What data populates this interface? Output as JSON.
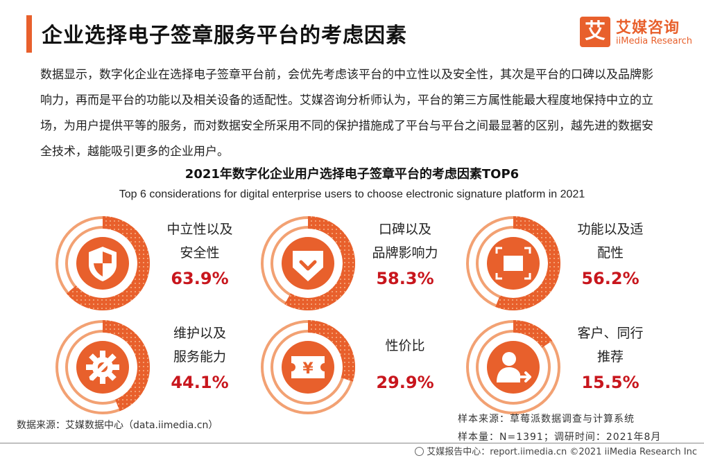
{
  "header": {
    "title": "企业选择电子签章服务平台的考虑因素",
    "logo_mark": "艾",
    "logo_cn": "艾媒咨询",
    "logo_en": "iiMedia Research"
  },
  "intro": "数据显示，数字化企业在选择电子签章平台前，会优先考虑该平台的中立性以及安全性，其次是平台的口碑以及品牌影响力，再而是平台的功能以及相关设备的适配性。艾媒咨询分析师认为，平台的第三方属性能最大程度地保持中立的立场，为用户提供平等的服务，而对数据安全所采用不同的保护措施成了平台与平台之间最显著的区别，越先进的数据安全技术，越能吸引更多的企业用户。",
  "chart_data": {
    "type": "pie",
    "title": "2021年数字化企业用户选择电子签章平台的考虑因素TOP6",
    "subtitle": "Top 6 considerations for digital enterprise users to choose electronic signature platform in 2021",
    "unit": "%",
    "items": [
      {
        "label_line1": "中立性以及",
        "label_line2": "安全性",
        "value": 63.9,
        "value_text": "63.9%",
        "icon": "shield-icon"
      },
      {
        "label_line1": "口碑以及",
        "label_line2": "品牌影响力",
        "value": 58.3,
        "value_text": "58.3%",
        "icon": "badge-check-icon"
      },
      {
        "label_line1": "功能以及适",
        "label_line2": "配性",
        "value": 56.2,
        "value_text": "56.2%",
        "icon": "device-frame-icon"
      },
      {
        "label_line1": "维护以及",
        "label_line2": "服务能力",
        "value": 44.1,
        "value_text": "44.1%",
        "icon": "gear-wrench-icon"
      },
      {
        "label_line1": "性价比",
        "label_line2": "",
        "value": 29.9,
        "value_text": "29.9%",
        "icon": "price-ticket-icon"
      },
      {
        "label_line1": "客户、同行",
        "label_line2": "推荐",
        "value": 15.5,
        "value_text": "15.5%",
        "icon": "user-refer-icon"
      }
    ],
    "colors": {
      "accent": "#e8602c",
      "track": "#f2a173",
      "value_text": "#c8161d"
    }
  },
  "source": {
    "left": "数据来源：艾媒数据中心（data.iimedia.cn）",
    "right_line1": "样本来源：草莓派数据调查与计算系统",
    "right_line2": "样本量：N=1391；调研时间：2021年8月"
  },
  "footer": "艾媒报告中心：report.iimedia.cn  ©2021  iiMedia Research  Inc"
}
